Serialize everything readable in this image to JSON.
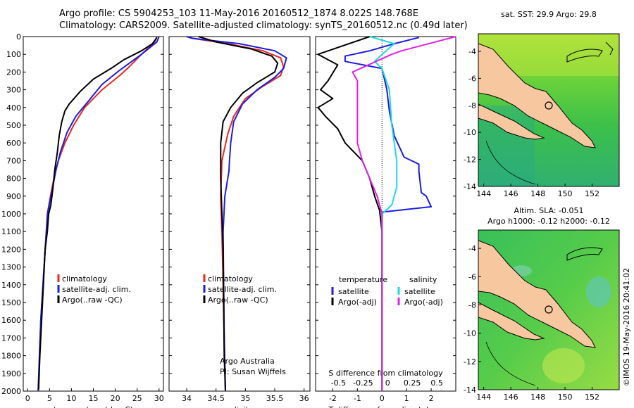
{
  "title_line1": "Argo profile: CS 5904253_103 11-May-2016 20160512_1874 8.022S 148.768E",
  "title_line2": "Climatology: CARS2009. Satellite-adjusted climatology: synTS_20160512.nc (0.49d later)",
  "credit_line1": "Argo Australia",
  "credit_line2": "PI: Susan Wijffels",
  "watermark": "©IMOS 19-May-2016 20:41:02",
  "colors": {
    "climatology": "#e8281e",
    "satellite": "#1c1ce0",
    "argo": "#000000",
    "satellite_diff_S": "#20d8e0",
    "argo_diff_S": "#e020e0",
    "land": "#f7c8a0"
  },
  "chart_data": [
    {
      "type": "line",
      "id": "temperature",
      "xlabel": "temperature (deg C)",
      "ylim": [
        2000,
        0
      ],
      "xlim": [
        -1,
        31
      ],
      "xticks": [
        0,
        5,
        10,
        15,
        20,
        25,
        30
      ],
      "yticks": [
        0,
        100,
        200,
        300,
        400,
        500,
        600,
        700,
        800,
        900,
        1000,
        1100,
        1200,
        1300,
        1400,
        1500,
        1600,
        1700,
        1800,
        1900,
        2000
      ],
      "legend": [
        "climatology",
        "satellite-adj. clim.",
        "Argo(..raw -QC)"
      ],
      "series": [
        {
          "name": "climatology",
          "color": "#e8281e",
          "points": [
            [
              29.5,
              0
            ],
            [
              29,
              30
            ],
            [
              26,
              100
            ],
            [
              23,
              175
            ],
            [
              21,
              220
            ],
            [
              17,
              300
            ],
            [
              13,
              400
            ],
            [
              10.5,
              500
            ],
            [
              8.5,
              600
            ],
            [
              7,
              700
            ],
            [
              6,
              800
            ],
            [
              5.2,
              900
            ],
            [
              4.5,
              1000
            ],
            [
              4,
              1200
            ],
            [
              3.5,
              1400
            ],
            [
              3,
              1600
            ],
            [
              2.7,
              1800
            ],
            [
              2.5,
              2000
            ]
          ]
        },
        {
          "name": "satellite-adj. clim.",
          "color": "#1c1ce0",
          "points": [
            [
              30,
              0
            ],
            [
              29.5,
              30
            ],
            [
              26,
              100
            ],
            [
              21,
              190
            ],
            [
              17,
              270
            ],
            [
              14,
              360
            ],
            [
              11,
              450
            ],
            [
              9,
              540
            ],
            [
              7.5,
              650
            ],
            [
              6.5,
              750
            ],
            [
              5.5,
              880
            ],
            [
              4.6,
              990
            ],
            [
              4,
              1200
            ],
            [
              3.5,
              1400
            ],
            [
              3,
              1600
            ],
            [
              2.7,
              1800
            ],
            [
              2.4,
              2000
            ]
          ]
        },
        {
          "name": "Argo(..raw -QC)",
          "color": "#000000",
          "points": [
            [
              29.5,
              5
            ],
            [
              28.5,
              40
            ],
            [
              26,
              80
            ],
            [
              22,
              130
            ],
            [
              19,
              180
            ],
            [
              15,
              240
            ],
            [
              12,
              310
            ],
            [
              9.5,
              380
            ],
            [
              8.5,
              420
            ],
            [
              7.8,
              480
            ],
            [
              7.2,
              560
            ],
            [
              6.8,
              650
            ],
            [
              6.2,
              750
            ],
            [
              5.8,
              850
            ],
            [
              5.3,
              950
            ],
            [
              4.8,
              1000
            ],
            [
              4.5,
              1100
            ],
            [
              4,
              1200
            ],
            [
              3.6,
              1400
            ],
            [
              3.2,
              1600
            ],
            [
              2.8,
              1800
            ],
            [
              2.5,
              1990
            ]
          ]
        }
      ]
    },
    {
      "type": "line",
      "id": "salinity",
      "xlabel": "salinity",
      "ylim": [
        2000,
        0
      ],
      "xlim": [
        33.7,
        36.1
      ],
      "xticks": [
        34,
        34.5,
        35,
        35.5,
        36
      ],
      "legend": [
        "climatology",
        "satellite-adj. clim.",
        "Argo(..raw -QC)"
      ],
      "series": [
        {
          "name": "climatology",
          "color": "#e8281e",
          "points": [
            [
              34.0,
              0
            ],
            [
              34.1,
              10
            ],
            [
              34.7,
              40
            ],
            [
              35.3,
              80
            ],
            [
              35.6,
              120
            ],
            [
              35.65,
              170
            ],
            [
              35.6,
              220
            ],
            [
              35.3,
              280
            ],
            [
              35.0,
              350
            ],
            [
              34.8,
              450
            ],
            [
              34.7,
              550
            ],
            [
              34.6,
              700
            ],
            [
              34.58,
              900
            ],
            [
              34.6,
              1100
            ],
            [
              34.62,
              1400
            ],
            [
              34.64,
              1700
            ],
            [
              34.66,
              2000
            ]
          ]
        },
        {
          "name": "satellite-adj. clim.",
          "color": "#1c1ce0",
          "points": [
            [
              34.0,
              0
            ],
            [
              34.1,
              10
            ],
            [
              34.9,
              40
            ],
            [
              35.5,
              80
            ],
            [
              35.7,
              120
            ],
            [
              35.65,
              180
            ],
            [
              35.5,
              230
            ],
            [
              35.2,
              300
            ],
            [
              34.95,
              380
            ],
            [
              34.8,
              480
            ],
            [
              34.75,
              600
            ],
            [
              34.73,
              700
            ],
            [
              34.72,
              760
            ],
            [
              34.65,
              900
            ],
            [
              34.62,
              1100
            ],
            [
              34.63,
              1400
            ],
            [
              34.64,
              1700
            ],
            [
              34.66,
              2000
            ]
          ]
        },
        {
          "name": "Argo(..raw -QC)",
          "color": "#000000",
          "points": [
            [
              34.2,
              0
            ],
            [
              34.5,
              30
            ],
            [
              35.1,
              70
            ],
            [
              35.45,
              110
            ],
            [
              35.55,
              150
            ],
            [
              35.5,
              200
            ],
            [
              35.2,
              260
            ],
            [
              34.95,
              320
            ],
            [
              34.75,
              400
            ],
            [
              34.62,
              480
            ],
            [
              34.58,
              600
            ],
            [
              34.58,
              800
            ],
            [
              34.6,
              1000
            ],
            [
              34.62,
              1200
            ],
            [
              34.63,
              1500
            ],
            [
              34.64,
              1800
            ],
            [
              34.66,
              2000
            ]
          ]
        }
      ]
    },
    {
      "type": "line",
      "id": "difference",
      "xlabel": "T difference from climatology",
      "xlabel_top": "S difference from climatology",
      "ylim": [
        2000,
        0
      ],
      "xlim": [
        -2.7,
        3
      ],
      "xticks_T": [
        -2,
        -1,
        0,
        1,
        2
      ],
      "xticks_S_labels": [
        "-0.5",
        "-0.25",
        "0",
        "0.25",
        "0.5"
      ],
      "xticks_S_pos": [
        -2,
        -1,
        0,
        1,
        2
      ],
      "legend_left_title": "temperature",
      "legend_right_title": "salinity",
      "legend": [
        "satellite",
        "Argo(-adj)",
        "satellite",
        "Argo(-adj)"
      ],
      "series": [
        {
          "name": "satellite",
          "color": "#1c1ce0",
          "points": [
            [
              1.5,
              5
            ],
            [
              0.5,
              40
            ],
            [
              -0.5,
              80
            ],
            [
              -1.5,
              110
            ],
            [
              -1.5,
              140
            ],
            [
              0,
              180
            ],
            [
              0.2,
              300
            ],
            [
              0.3,
              420
            ],
            [
              0.5,
              560
            ],
            [
              0.9,
              680
            ],
            [
              1.5,
              720
            ],
            [
              1.5,
              760
            ],
            [
              1.6,
              880
            ],
            [
              1.8,
              900
            ],
            [
              2,
              960
            ],
            [
              0,
              990
            ],
            [
              0,
              1100
            ],
            [
              0,
              2000
            ]
          ]
        },
        {
          "name": "Argo(-adj)",
          "color": "#000000",
          "points": [
            [
              -0.5,
              0
            ],
            [
              -2.6,
              100
            ],
            [
              -1.8,
              160
            ],
            [
              -2.2,
              250
            ],
            [
              -2.5,
              300
            ],
            [
              -2.0,
              350
            ],
            [
              -2.6,
              400
            ],
            [
              -2.3,
              450
            ],
            [
              -1.8,
              520
            ],
            [
              -1.5,
              600
            ],
            [
              -0.8,
              700
            ],
            [
              -0.5,
              800
            ],
            [
              -0.3,
              900
            ],
            [
              -0.1,
              980
            ],
            [
              0,
              1100
            ],
            [
              0,
              1500
            ],
            [
              0,
              2000
            ]
          ]
        },
        {
          "name": "satellite",
          "color": "#20d8e0",
          "points": [
            [
              -0.5,
              0
            ],
            [
              0.5,
              40
            ],
            [
              0,
              100
            ],
            [
              -0.3,
              140
            ],
            [
              0,
              180
            ],
            [
              0.3,
              300
            ],
            [
              0.4,
              500
            ],
            [
              0.6,
              700
            ],
            [
              0.6,
              850
            ],
            [
              0.4,
              950
            ],
            [
              0,
              1000
            ],
            [
              0,
              2000
            ]
          ]
        },
        {
          "name": "Argo(-adj)",
          "color": "#e020e0",
          "points": [
            [
              3,
              0
            ],
            [
              0.8,
              80
            ],
            [
              0.4,
              100
            ],
            [
              -1.2,
              200
            ],
            [
              -1,
              250
            ],
            [
              -1,
              350
            ],
            [
              -1,
              400
            ],
            [
              -1,
              500
            ],
            [
              -1,
              600
            ],
            [
              -0.8,
              700
            ],
            [
              -0.5,
              800
            ],
            [
              -0.2,
              900
            ],
            [
              0,
              1000
            ],
            [
              0,
              2000
            ]
          ]
        }
      ]
    },
    {
      "type": "heatmap",
      "id": "sst_map",
      "title": "sat. SST: 29.9 Argo: 29.8",
      "xlim": [
        143.6,
        154
      ],
      "ylim": [
        -14,
        -2.7
      ],
      "xticks": [
        144,
        146,
        148,
        150,
        152
      ],
      "yticks": [
        -4,
        -6,
        -8,
        -10,
        -12,
        -14
      ],
      "marker": [
        148.768,
        -8.022
      ]
    },
    {
      "type": "heatmap",
      "id": "sla_map",
      "title": "Altim. SLA: -0.051",
      "subtitle": "Argo h1000: -0.12 h2000: -0.12",
      "xlim": [
        143.6,
        154
      ],
      "ylim": [
        -14,
        -2.7
      ],
      "xticks": [
        144,
        146,
        148,
        150,
        152
      ],
      "yticks": [
        -4,
        -6,
        -8,
        -10,
        -12,
        -14
      ],
      "marker": [
        148.768,
        -8.022
      ]
    }
  ]
}
